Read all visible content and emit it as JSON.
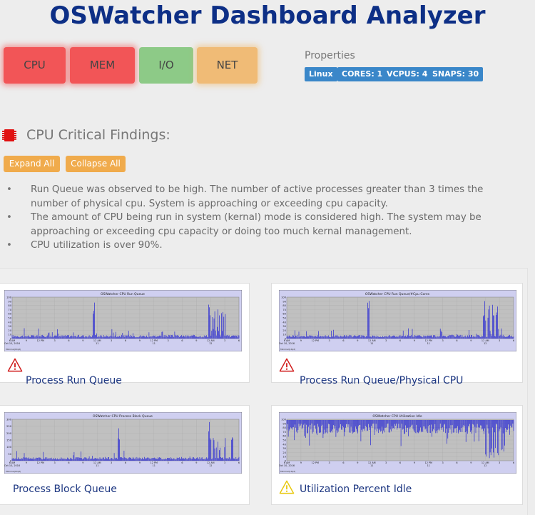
{
  "app": {
    "title": "OSWatcher Dashboard Analyzer"
  },
  "categories": [
    {
      "label": "CPU",
      "status": "critical",
      "color": "#f25557"
    },
    {
      "label": "MEM",
      "status": "critical",
      "color": "#f25557"
    },
    {
      "label": "I/O",
      "status": "ok",
      "color": "#8dca87"
    },
    {
      "label": "NET",
      "status": "warning",
      "color": "#f0bb76"
    }
  ],
  "properties": {
    "label": "Properties",
    "badges": [
      "Linux",
      "CORES: 1",
      "VCPUS: 4",
      "SNAPS: 30"
    ],
    "badge_color": "#3a87c9"
  },
  "section": {
    "icon": "cpu-chip-icon",
    "title": "CPU Critical Findings:",
    "expand_label": "Expand All",
    "collapse_label": "Collapse All"
  },
  "findings": [
    "Run Queue was observed to be high. The number of active processes greater than 3 times the number of physical cpu. System is approaching or exceeding cpu capacity.",
    "The amount of CPU being run in system (kernal) mode is considered high. The system may be approaching or exceeding cpu capacity or doing too much kernal management.",
    "CPU utilization is over 90%."
  ],
  "charts": [
    {
      "chart_title": "OSWatcher CPU Run Queue",
      "label": "Process Run Queue",
      "icon": "warning-triangle-red-icon",
      "y_ticks": [
        "100",
        "90",
        "80",
        "70",
        "60",
        "50",
        "40",
        "30",
        "20",
        "10",
        "0"
      ],
      "x_ticks": [
        "6 AM\nOct 10, 2016",
        "9",
        "12 PM",
        "3",
        "6",
        "9",
        "12 AM\n11",
        "3",
        "6",
        "9",
        "12 PM\n11",
        "3",
        "6",
        "9",
        "12 AM\n12",
        "3",
        "6"
      ],
      "footer": "Minimal(1Kpt)"
    },
    {
      "chart_title": "OSWatcher CPU Run Queue/#Cpu Cores",
      "label": "Process Run Queue/Physical CPU",
      "icon": "warning-triangle-red-icon",
      "y_ticks": [
        "100",
        "90",
        "80",
        "70",
        "60",
        "50",
        "40",
        "30",
        "20",
        "10",
        "0"
      ],
      "x_ticks": [
        "6 AM\nOct 10, 2016",
        "9",
        "12 PM",
        "3",
        "6",
        "9",
        "12 AM\n11",
        "3",
        "6",
        "9",
        "12 PM\n11",
        "3",
        "6",
        "9",
        "12 AM\n12",
        "3",
        "6"
      ],
      "footer": "Minimal(1Kpt)"
    },
    {
      "chart_title": "OSWatcher CPU Process Block Queue",
      "label": "Process Block Queue",
      "icon": "",
      "y_ticks": [
        "300",
        "250",
        "200",
        "150",
        "100",
        "50",
        "0"
      ],
      "x_ticks": [
        "6 AM\nOct 10, 2016",
        "9",
        "12 PM",
        "3",
        "6",
        "9",
        "12 AM\n11",
        "3",
        "6",
        "9",
        "12 PM\n11",
        "3",
        "6",
        "9",
        "12 AM\n12",
        "3",
        "6"
      ],
      "footer": "Minimal(1Kpt)"
    },
    {
      "chart_title": "OSWatcher CPU Utilization Idle",
      "label": "Utilization Percent Idle",
      "icon": "warning-triangle-yellow-icon",
      "y_ticks": [
        "100",
        "90",
        "80",
        "70",
        "60",
        "50",
        "40",
        "30",
        "20",
        "10",
        "0"
      ],
      "x_ticks": [
        "6 AM\nOct 10, 2016",
        "9",
        "12 PM",
        "3",
        "6",
        "9",
        "12 AM\n11",
        "3",
        "6",
        "9",
        "12 PM\n11",
        "3",
        "6",
        "9",
        "12 AM\n12",
        "3",
        "6"
      ],
      "footer": "Minimal(1Kpt)"
    }
  ]
}
